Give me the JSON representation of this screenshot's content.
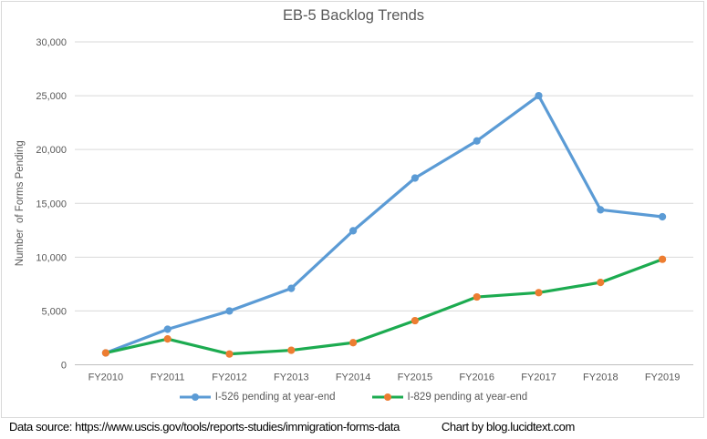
{
  "title": "EB-5 Backlog Trends",
  "footer": {
    "data_source": "Data source: https://www.uscis.gov/tools/reports-studies/immigration-forms-data",
    "credit": "Chart by blog.lucidtext.com"
  },
  "colors": {
    "gridline": "#D9D9D9",
    "axis_line": "#BFBFBF",
    "axis_text": "#595959",
    "title_text": "#595959",
    "frame_border": "#D9D9D9",
    "i526": "#5B9BD5",
    "i829_line": "#1CAB50",
    "i829_marker": "#ED7D31"
  },
  "chart_data": {
    "type": "line",
    "title": "EB-5 Backlog Trends",
    "xlabel": "",
    "ylabel": "Number  of Forms Pending",
    "categories": [
      "FY2010",
      "FY2011",
      "FY2012",
      "FY2013",
      "FY2014",
      "FY2015",
      "FY2016",
      "FY2017",
      "FY2018",
      "FY2019"
    ],
    "series": [
      {
        "name": "I-526 pending at year-end",
        "color": "#5B9BD5",
        "marker_color": "#5B9BD5",
        "values": [
          1100,
          3300,
          5000,
          7100,
          12450,
          17350,
          20800,
          25000,
          14400,
          13750
        ]
      },
      {
        "name": "I-829 pending at year-end",
        "color": "#1CAB50",
        "marker_color": "#ED7D31",
        "values": [
          1100,
          2400,
          1000,
          1350,
          2050,
          4100,
          6300,
          6700,
          7650,
          9800
        ]
      }
    ],
    "ylim": [
      0,
      30000
    ],
    "ytick_step": 5000,
    "ytick_labels": [
      "0",
      "5,000",
      "10,000",
      "15,000",
      "20,000",
      "25,000",
      "30,000"
    ],
    "grid": true,
    "legend_position": "bottom"
  }
}
